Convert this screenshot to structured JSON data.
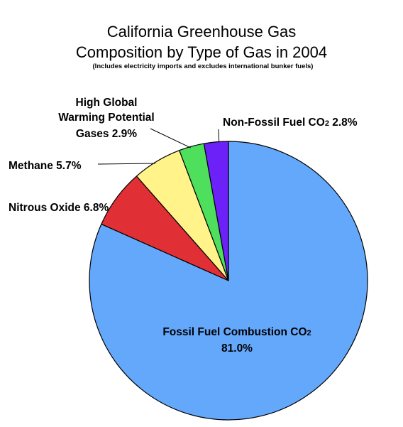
{
  "chart_data": {
    "type": "pie",
    "title_lines": [
      "California Greenhouse Gas",
      "Composition by Type of Gas in 2004"
    ],
    "subtitle": "(Includes electricity imports and excludes international bunker fuels)",
    "slices": [
      {
        "key": "fossil",
        "label": "Fossil Fuel Combustion CO2",
        "label_text": "Fossil Fuel Combustion CO",
        "subscript": "2",
        "value": 81.0,
        "value_text": "81.0%",
        "color": "#64A8FC"
      },
      {
        "key": "nitrous",
        "label": "Nitrous Oxide",
        "label_text": "Nitrous Oxide 6.8%",
        "value": 6.8,
        "color": "#E02F35"
      },
      {
        "key": "methane",
        "label": "Methane",
        "label_text": "Methane 5.7%",
        "value": 5.7,
        "color": "#FFF38A"
      },
      {
        "key": "hgwp",
        "label": "High Global Warming Potential Gases",
        "label_lines": [
          "High Global",
          "Warming Potential",
          "Gases 2.9%"
        ],
        "value": 2.9,
        "color": "#4EE05D"
      },
      {
        "key": "nonfossil",
        "label": "Non-Fossil Fuel CO2",
        "label_text": "Non-Fossil Fuel CO",
        "subscript": "2",
        "label_suffix": " 2.8%",
        "value": 2.8,
        "color": "#6C21F8"
      }
    ]
  }
}
